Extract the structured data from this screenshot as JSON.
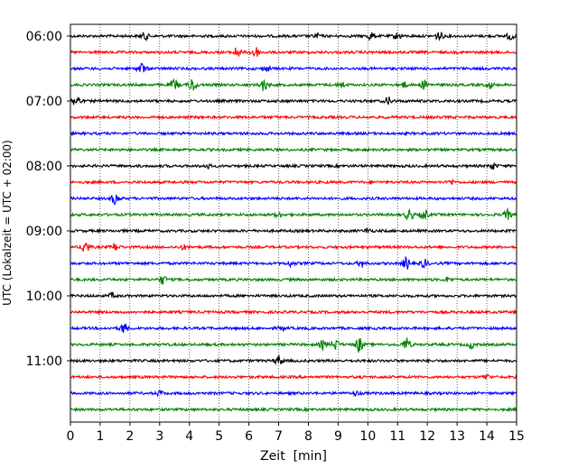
{
  "chart_data": {
    "type": "line",
    "title": "",
    "xlabel": "Zeit  [min]",
    "ylabel": "UTC (Lokalzeit = UTC + 02:00)",
    "xlim": [
      0,
      15
    ],
    "x_ticks": [
      0,
      1,
      2,
      3,
      4,
      5,
      6,
      7,
      8,
      9,
      10,
      11,
      12,
      13,
      14,
      15
    ],
    "x_tick_labels": [
      "0",
      "1",
      "2",
      "3",
      "4",
      "5",
      "6",
      "7",
      "8",
      "9",
      "10",
      "11",
      "12",
      "13",
      "14",
      "15"
    ],
    "grid": "vertical dotted lines at each minute",
    "row_interval_minutes": 15,
    "y_tick_labels": [
      "06:00",
      "07:00",
      "08:00",
      "09:00",
      "10:00",
      "11:00"
    ],
    "y_tick_rows": [
      0,
      4,
      8,
      12,
      16,
      20
    ],
    "series_colors": [
      "#000000",
      "#ff0000",
      "#0000ff",
      "#008000"
    ],
    "rows": [
      {
        "start": "06:00",
        "color": "#000000",
        "events": [
          [
            2.5,
            0.8
          ],
          [
            8.3,
            0.6
          ],
          [
            10.1,
            0.9
          ],
          [
            11.0,
            0.7
          ],
          [
            12.4,
            1.0
          ],
          [
            14.8,
            0.8
          ]
        ]
      },
      {
        "start": "06:15",
        "color": "#ff0000",
        "events": [
          [
            5.6,
            1.2
          ],
          [
            6.2,
            1.5
          ]
        ]
      },
      {
        "start": "06:30",
        "color": "#0000ff",
        "events": [
          [
            2.4,
            1.3
          ],
          [
            6.6,
            0.6
          ]
        ]
      },
      {
        "start": "06:45",
        "color": "#008000",
        "events": [
          [
            3.5,
            1.3
          ],
          [
            4.1,
            1.6
          ],
          [
            6.5,
            1.4
          ],
          [
            9.1,
            0.8
          ],
          [
            11.2,
            0.7
          ],
          [
            11.9,
            1.1
          ],
          [
            14.1,
            0.8
          ]
        ]
      },
      {
        "start": "07:00",
        "color": "#000000",
        "events": [
          [
            0.2,
            1.6
          ],
          [
            10.7,
            0.9
          ]
        ]
      },
      {
        "start": "07:15",
        "color": "#ff0000",
        "events": []
      },
      {
        "start": "07:30",
        "color": "#0000ff",
        "events": []
      },
      {
        "start": "07:45",
        "color": "#008000",
        "events": []
      },
      {
        "start": "08:00",
        "color": "#000000",
        "events": [
          [
            4.6,
            0.5
          ],
          [
            14.2,
            0.7
          ]
        ]
      },
      {
        "start": "08:15",
        "color": "#ff0000",
        "events": [
          [
            12.8,
            0.5
          ]
        ]
      },
      {
        "start": "08:30",
        "color": "#0000ff",
        "events": [
          [
            1.5,
            1.3
          ]
        ]
      },
      {
        "start": "08:45",
        "color": "#008000",
        "events": [
          [
            7.0,
            0.5
          ],
          [
            11.4,
            1.4
          ],
          [
            11.9,
            1.2
          ],
          [
            14.7,
            1.1
          ]
        ]
      },
      {
        "start": "09:00",
        "color": "#000000",
        "events": [
          [
            10.0,
            0.5
          ]
        ]
      },
      {
        "start": "09:15",
        "color": "#ff0000",
        "events": [
          [
            0.5,
            1.6
          ],
          [
            1.5,
            0.9
          ],
          [
            3.8,
            0.5
          ]
        ]
      },
      {
        "start": "09:30",
        "color": "#0000ff",
        "events": [
          [
            7.4,
            0.6
          ],
          [
            9.8,
            0.8
          ],
          [
            11.3,
            1.5
          ],
          [
            11.9,
            0.9
          ]
        ]
      },
      {
        "start": "09:45",
        "color": "#008000",
        "events": [
          [
            3.1,
            1.0
          ],
          [
            12.7,
            0.5
          ]
        ]
      },
      {
        "start": "10:00",
        "color": "#000000",
        "events": [
          [
            1.4,
            0.5
          ]
        ]
      },
      {
        "start": "10:15",
        "color": "#ff0000",
        "events": []
      },
      {
        "start": "10:30",
        "color": "#0000ff",
        "events": [
          [
            1.8,
            1.2
          ],
          [
            7.1,
            0.4
          ]
        ]
      },
      {
        "start": "10:45",
        "color": "#008000",
        "events": [
          [
            8.5,
            1.0
          ],
          [
            8.9,
            1.3
          ],
          [
            9.7,
            1.8
          ],
          [
            11.3,
            1.6
          ],
          [
            13.5,
            0.8
          ]
        ]
      },
      {
        "start": "11:00",
        "color": "#000000",
        "events": [
          [
            7.0,
            1.2
          ]
        ]
      },
      {
        "start": "11:15",
        "color": "#ff0000",
        "events": [
          [
            14.0,
            0.5
          ]
        ]
      },
      {
        "start": "11:30",
        "color": "#0000ff",
        "events": [
          [
            3.0,
            0.5
          ],
          [
            9.6,
            0.5
          ]
        ]
      },
      {
        "start": "11:45",
        "color": "#008000",
        "events": []
      }
    ]
  }
}
